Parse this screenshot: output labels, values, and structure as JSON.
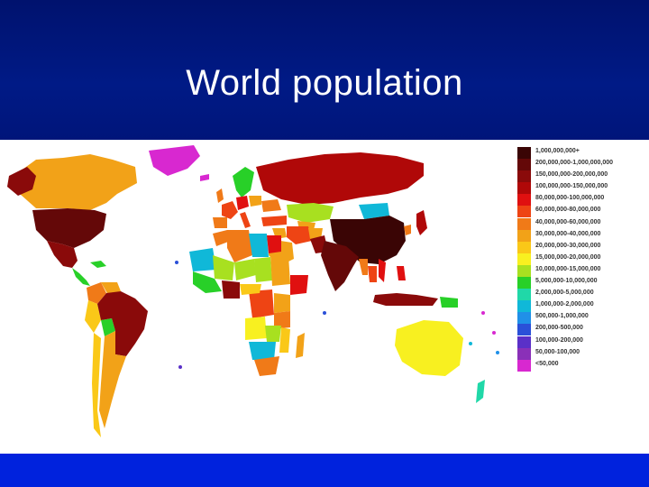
{
  "slide": {
    "title": "World population",
    "colors": {
      "title_band": "#001a86",
      "bottom_band": "#0022dd",
      "title_text": "#ffffff"
    }
  },
  "legend": {
    "items": [
      {
        "label": "1,000,000,000+",
        "color": "#3a0505"
      },
      {
        "label": "200,000,000-1,000,000,000",
        "color": "#640808"
      },
      {
        "label": "150,000,000-200,000,000",
        "color": "#8a0a0a"
      },
      {
        "label": "100,000,000-150,000,000",
        "color": "#b00808"
      },
      {
        "label": "80,000,000-100,000,000",
        "color": "#e01010"
      },
      {
        "label": "60,000,000-80,000,000",
        "color": "#ee4414"
      },
      {
        "label": "40,000,000-60,000,000",
        "color": "#f07a18"
      },
      {
        "label": "30,000,000-40,000,000",
        "color": "#f2a218"
      },
      {
        "label": "20,000,000-30,000,000",
        "color": "#fac818"
      },
      {
        "label": "15,000,000-20,000,000",
        "color": "#f8f020"
      },
      {
        "label": "10,000,000-15,000,000",
        "color": "#a8e020"
      },
      {
        "label": "5,000,000-10,000,000",
        "color": "#28d028"
      },
      {
        "label": "2,000,000-5,000,000",
        "color": "#20d8a8"
      },
      {
        "label": "1,000,000-2,000,000",
        "color": "#10b8d8"
      },
      {
        "label": "500,000-1,000,000",
        "color": "#2090e8"
      },
      {
        "label": "200,000-500,000",
        "color": "#2a50d8"
      },
      {
        "label": "100,000-200,000",
        "color": "#5a30c8"
      },
      {
        "label": "50,000-100,000",
        "color": "#8a30b8"
      },
      {
        "label": "<50,000",
        "color": "#d828d0"
      }
    ]
  }
}
